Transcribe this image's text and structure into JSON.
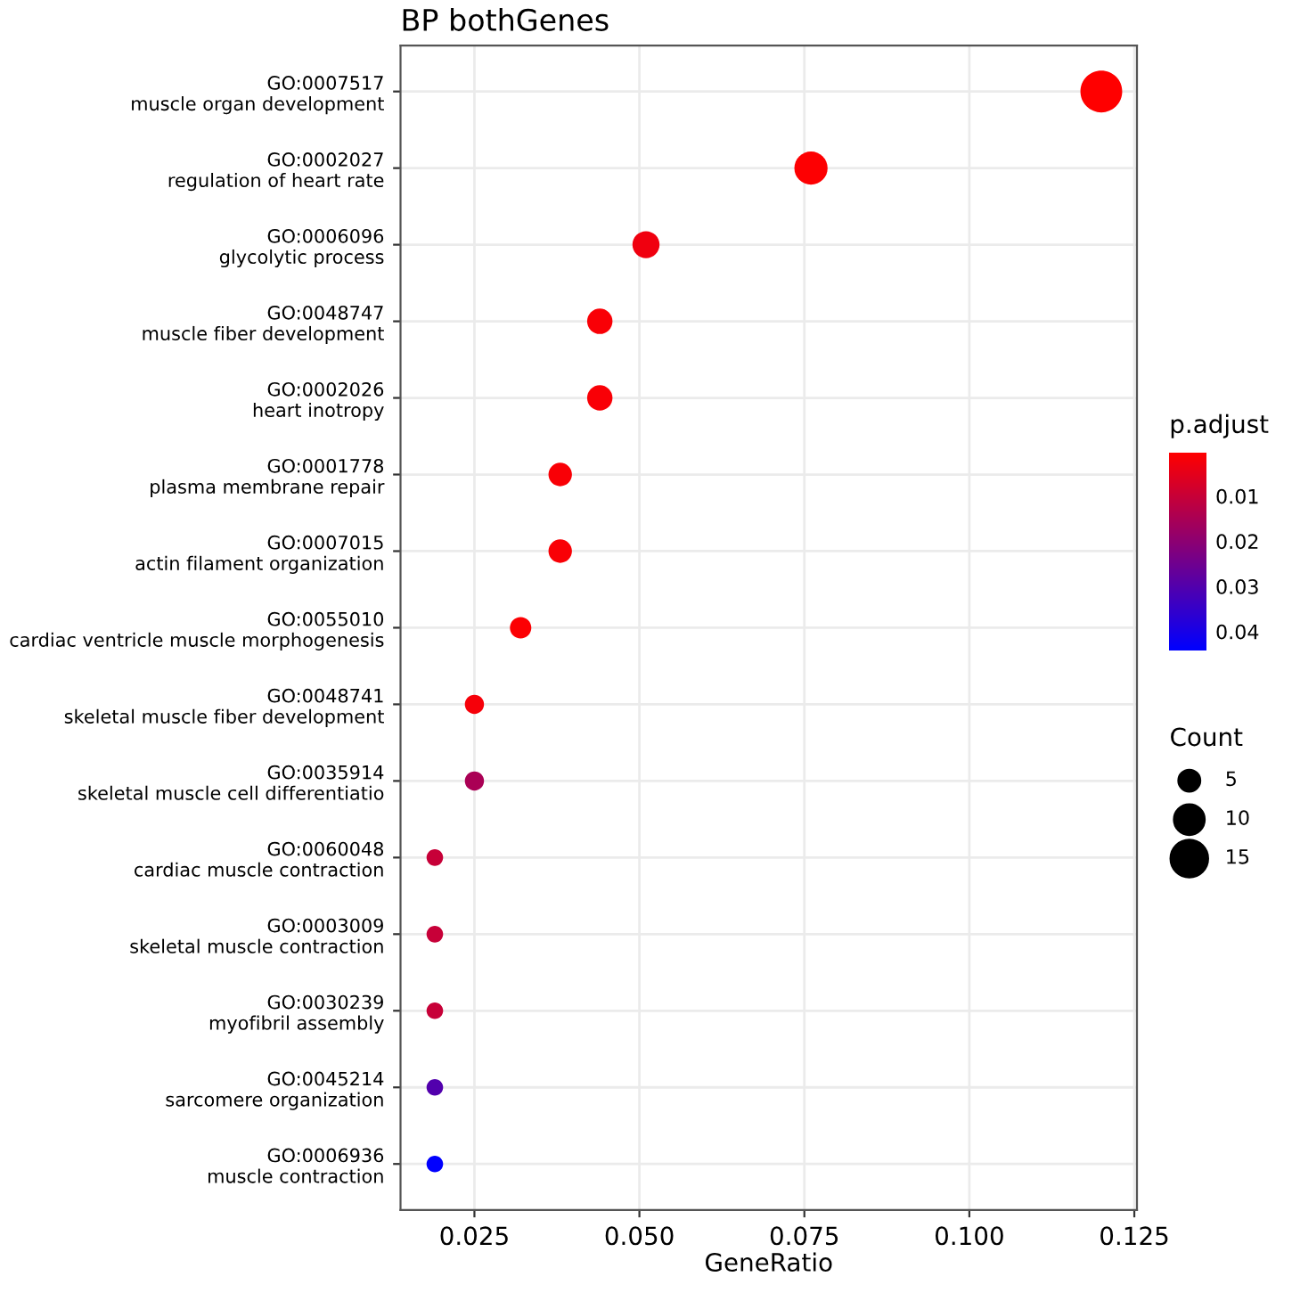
{
  "chart_data": {
    "type": "bubble",
    "orientation": "horizontal",
    "title": "BP bothGenes",
    "xlabel": "GeneRatio",
    "clabel": "p.adjust",
    "legend_title": "Count",
    "categories": [
      "GO:0007517\nmuscle organ development",
      "GO:0002027\nregulation of heart rate",
      "GO:0006096\nglycolytic process",
      "GO:0048747\nmuscle fiber development",
      "GO:0002026\nheart inotropy",
      "GO:0001778\nplasma membrane repair",
      "GO:0007015\nactin filament organization",
      "GO:0055010\ncardiac ventricle muscle morphogenesis",
      "GO:0048741\nskeletal muscle fiber development",
      "GO:0035914\nskeletal muscle cell differentiatio",
      "GO:0060048\ncardiac muscle contraction",
      "GO:0003009\nskeletal muscle contraction",
      "GO:0030239\nmyofibril assembly",
      "GO:0045214\nsarcomere organization",
      "GO:0006936\nmuscle contraction"
    ],
    "values": [
      0.12,
      0.076,
      0.051,
      0.044,
      0.044,
      0.038,
      0.038,
      0.032,
      0.025,
      0.025,
      0.019,
      0.019,
      0.019,
      0.019,
      0.019
    ],
    "sizes": [
      19,
      12,
      8,
      7,
      7,
      6,
      6,
      5,
      4,
      4,
      3,
      3,
      3,
      3,
      3
    ],
    "cvalues": [
      0.0005,
      0.0008,
      0.003,
      0.0015,
      0.0015,
      0.0015,
      0.0015,
      0.001,
      0.002,
      0.015,
      0.01,
      0.01,
      0.01,
      0.03,
      0.044
    ],
    "size_legend": [
      5,
      10,
      15
    ],
    "clim": [
      0.0004,
      0.0442
    ],
    "cticks": [
      0.01,
      0.02,
      0.03,
      0.04
    ],
    "xlim": [
      0.0138,
      0.1254
    ],
    "xticks": [
      {
        "value": 0.025,
        "label": "0.025"
      },
      {
        "value": 0.05,
        "label": "0.050"
      },
      {
        "value": 0.075,
        "label": "0.075"
      },
      {
        "value": 0.1,
        "label": "0.100"
      },
      {
        "value": 0.125,
        "label": "0.125"
      }
    ],
    "grid": true
  }
}
